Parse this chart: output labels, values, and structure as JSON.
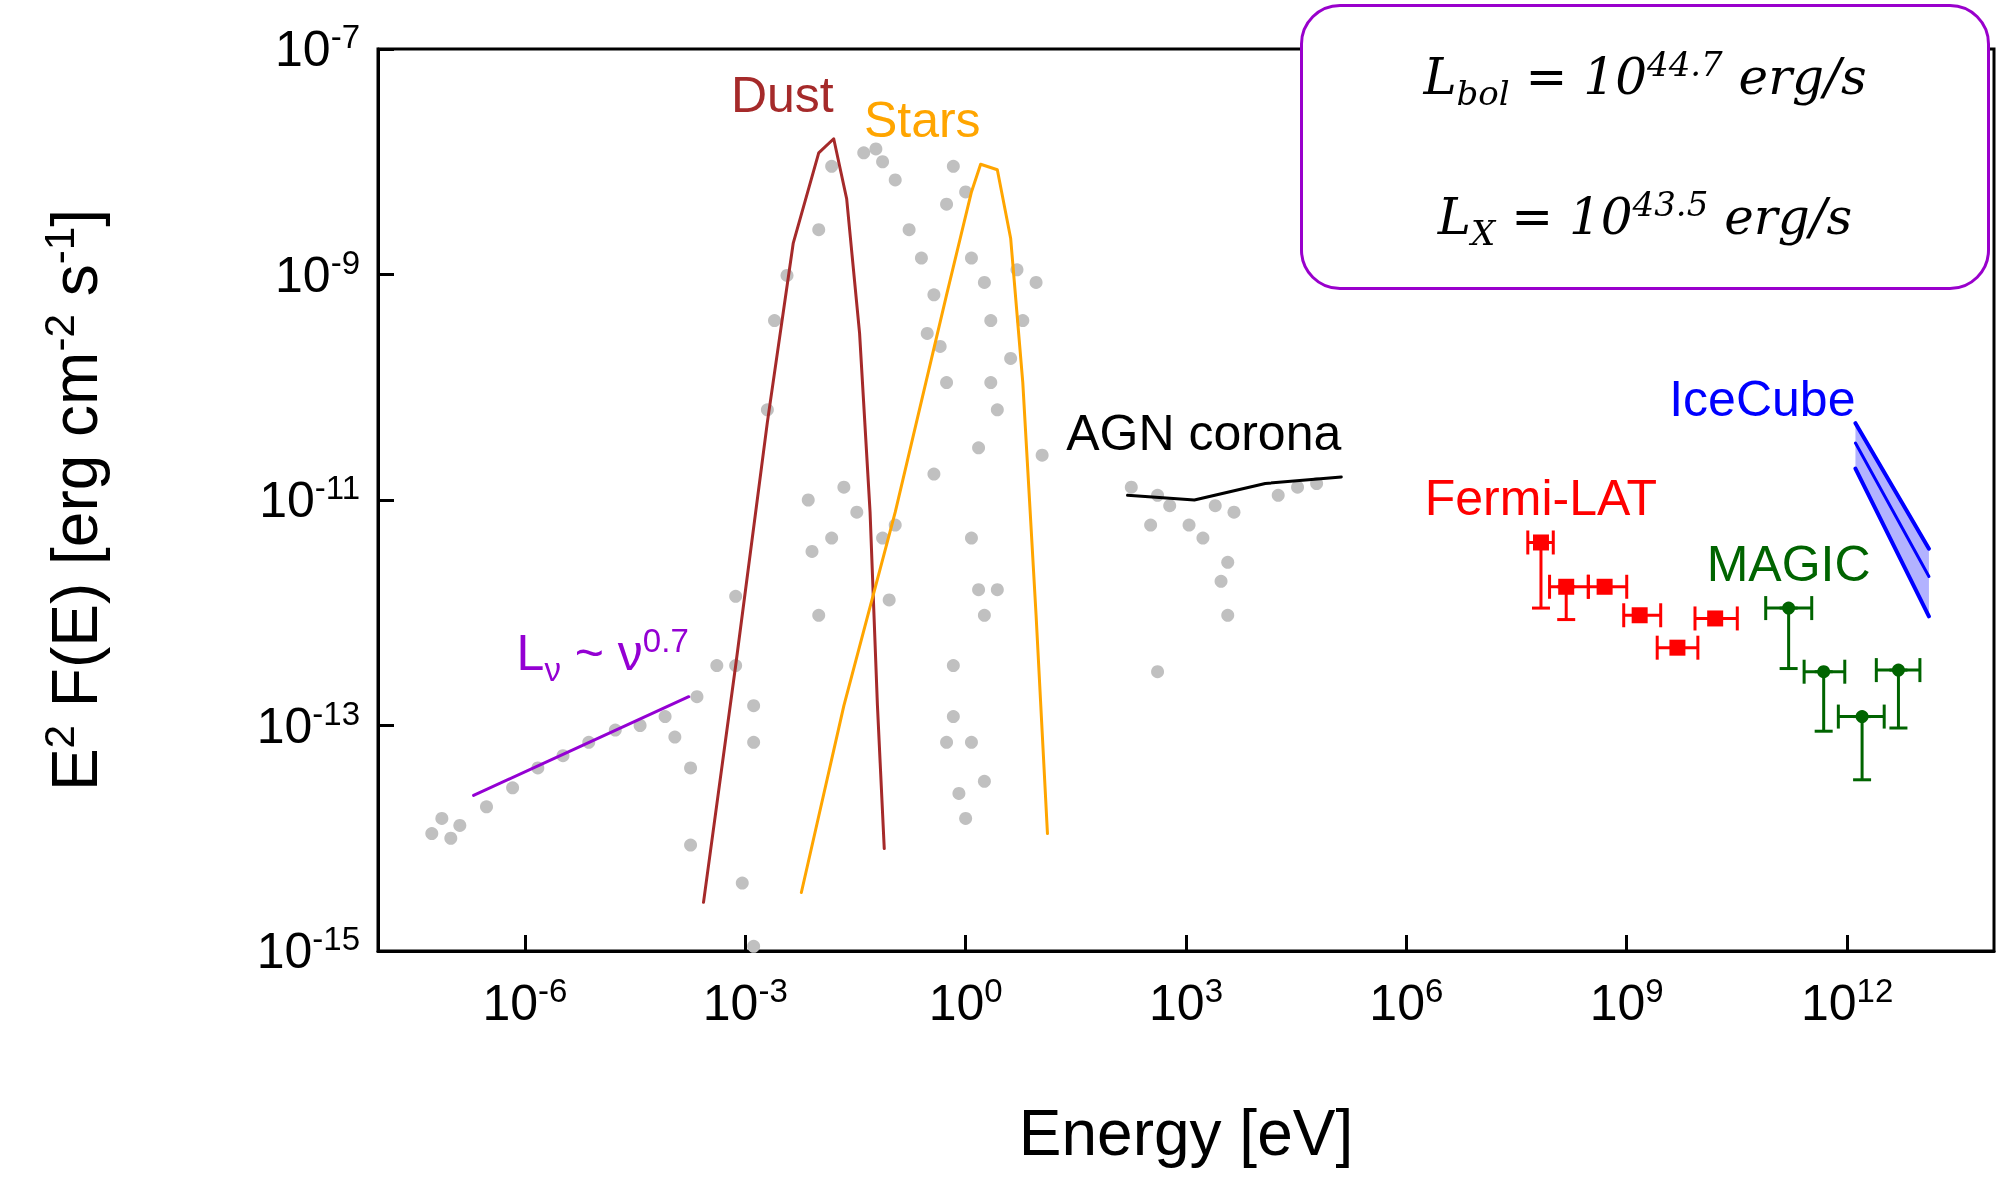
{
  "chart_data": {
    "type": "scatter",
    "xlabel": "Energy [eV]",
    "ylabel": "E$^{2}$ F(E) [erg cm$^{-2}$ s$^{-1}$]",
    "log": "xy",
    "xlim": [
      1e-08,
      100000000000000.0
    ],
    "ylim": [
      1e-15,
      1e-07
    ],
    "xticks": [
      {
        "value": 1e-06,
        "label": "10$^{-6}$"
      },
      {
        "value": 0.001,
        "label": "10$^{-3}$"
      },
      {
        "value": 1,
        "label": "10$^{0}$"
      },
      {
        "value": 1000.0,
        "label": "10$^{3}$"
      },
      {
        "value": 1000000.0,
        "label": "10$^{6}$"
      },
      {
        "value": 1000000000.0,
        "label": "10$^{9}$"
      },
      {
        "value": 1000000000000.0,
        "label": "10$^{12}$"
      }
    ],
    "yticks": [
      {
        "value": 1e-15,
        "label": "10$^{-15}$"
      },
      {
        "value": 1e-13,
        "label": "10$^{-13}$"
      },
      {
        "value": 1e-11,
        "label": "10$^{-11}$"
      },
      {
        "value": 1e-09,
        "label": "10$^{-9}$"
      },
      {
        "value": 1e-07,
        "label": "10$^{-7}$"
      }
    ],
    "annotations": [
      "L$_{bol}$ = 10$^{44.7}$ erg/s",
      "L$_{X}$ = 10$^{43.5}$ erg/s"
    ],
    "series": [
      {
        "marker": "circle",
        "color": "#c0c0c0",
        "x": [
          5.4e-08,
          7.4e-08,
          9.8e-08,
          1.3e-07,
          3e-07,
          6.8e-07,
          1.5e-06,
          3.3e-06,
          7.4e-06,
          1.7e-05,
          3.7e-05,
          8.1e-05,
          0.00011,
          0.00018,
          0.00018,
          0.00022,
          0.00041,
          0.00074,
          0.00074,
          0.0013,
          0.0013,
          0.00091,
          0.0013,
          0.002,
          0.0025,
          0.0037,
          0.0072,
          0.0081,
          0.01,
          0.015,
          0.01,
          0.015,
          0.022,
          0.033,
          0.074,
          0.11,
          0.041,
          0.074,
          0.11,
          0.17,
          0.25,
          0.37,
          0.45,
          0.55,
          0.68,
          1.0,
          1.2,
          1.8,
          2.2,
          2.7,
          4.1,
          6.0,
          9.1,
          1.5,
          1.2,
          1.5,
          1.8,
          0.68,
          0.68,
          0.55,
          1.2,
          0.81,
          1.8,
          2.7,
          11,
          0.37,
          0.091,
          1.0,
          180,
          410,
          600,
          1100,
          1700,
          2500,
          4500,
          3700,
          3000,
          410,
          3700,
          18000,
          33000,
          60000,
          330,
          0.06,
          0.55,
          0.3,
          5.0,
          2.2
        ],
        "values": [
          1.1e-14,
          1.5e-14,
          1e-14,
          1.3e-14,
          1.9e-14,
          2.8e-14,
          4.2e-14,
          5.4e-14,
          7.1e-14,
          9.1e-14,
          1e-13,
          1.2e-13,
          7.9e-14,
          4.2e-14,
          8.7e-15,
          1.8e-13,
          3.4e-13,
          3.4e-13,
          1.4e-12,
          1.5e-13,
          7.1e-14,
          4e-15,
          1.1e-15,
          6.3e-11,
          3.9e-10,
          9.8e-10,
          1e-11,
          3.5e-12,
          2.5e-09,
          9.1e-09,
          9.5e-13,
          4.6e-12,
          1.3e-11,
          7.8e-12,
          4.6e-12,
          6e-12,
          1.2e-08,
          1e-08,
          6.9e-09,
          2.5e-09,
          1.4e-09,
          6.6e-10,
          2.3e-10,
          1.1e-10,
          9.1e-09,
          5.4e-09,
          1.4e-09,
          8.5e-10,
          1.1e-10,
          6.3e-11,
          1.8e-10,
          3.9e-10,
          8.5e-10,
          2.9e-11,
          4.6e-12,
          1.6e-12,
          9.5e-13,
          3.4e-13,
          1.2e-13,
          7.1e-14,
          7.1e-14,
          2.5e-14,
          3.2e-14,
          1.6e-12,
          2.5e-11,
          1.7e-11,
          1.3e-12,
          1.5e-14,
          1.3e-11,
          1.1e-11,
          8.9e-12,
          6e-12,
          4.6e-12,
          8.9e-12,
          7.8e-12,
          2.8e-12,
          1.9e-12,
          3e-13,
          9.5e-13,
          1.1e-11,
          1.3e-11,
          1.4e-11,
          6e-12,
          1.3e-08,
          4.2e-09,
          3e-10,
          1.1e-09,
          3.9e-10
        ]
      },
      {
        "type": "line",
        "marker": "none",
        "name": "L$_{ν}$ ~ ν$^{0.7}$",
        "color": "#9400d3",
        "x": [
          2e-07,
          0.00017
        ],
        "values": [
          2.4e-14,
          1.8e-13
        ]
      },
      {
        "type": "line",
        "marker": "none",
        "name": "Dust",
        "color": "#a52a2a",
        "x": [
          0.00027,
          0.00074,
          0.002,
          0.0045,
          0.01,
          0.016,
          0.024,
          0.036,
          0.05,
          0.063,
          0.078
        ],
        "values": [
          2.7e-15,
          3.4e-13,
          4.9e-11,
          1.9e-09,
          1.2e-08,
          1.6e-08,
          4.7e-09,
          3e-10,
          7.8e-12,
          1.5e-13,
          8.1e-15
        ]
      },
      {
        "type": "line",
        "marker": "none",
        "name": "Stars",
        "color": "#ffa500",
        "x": [
          0.0058,
          0.022,
          0.11,
          0.55,
          1.2,
          1.6,
          2.7,
          4.1,
          6.0,
          9.1,
          13
        ],
        "values": [
          3.3e-15,
          1.5e-13,
          7.8e-12,
          6.6e-10,
          5.4e-09,
          9.5e-09,
          8.5e-09,
          2.1e-09,
          1.1e-10,
          9.5e-13,
          1.1e-14
        ]
      },
      {
        "type": "line",
        "marker": "none",
        "name": "AGN corona",
        "color": "#000000",
        "x": [
          160,
          1300,
          12000,
          130000.0
        ],
        "values": [
          1.1e-11,
          1e-11,
          1.4e-11,
          1.6e-11
        ]
      },
      {
        "marker": "square",
        "name": "Fermi-LAT",
        "color": "#ff0000",
        "x": [
          68000000.0,
          150000000.0,
          500000000.0,
          1500000000.0,
          4900000000.0,
          16000000000.0
        ],
        "values": [
          4.2e-12,
          1.7e-12,
          1.7e-12,
          9.5e-13,
          4.9e-13,
          8.9e-13
        ],
        "xerrors": [
          [
            45000000.0,
            100000000.0
          ],
          [
            89000000.0,
            300000000.0
          ],
          [
            300000000.0,
            1000000000.0
          ],
          [
            910000000.0,
            2900000000.0
          ],
          [
            2600000000.0,
            9300000000.0
          ],
          [
            8500000000.0,
            32000000000.0
          ]
        ],
        "errors": [
          [
            1.1e-12,
            4.2e-12
          ],
          [
            8.7e-13,
            1.7e-12
          ],
          null,
          null,
          null,
          null
        ]
      },
      {
        "marker": "circle",
        "name": "MAGIC",
        "color": "#006400",
        "x": [
          160000000000.0,
          480000000000.0,
          1600000000000.0,
          5000000000000.0
        ],
        "values": [
          1.1e-12,
          3e-13,
          1.2e-13,
          3.1e-13
        ],
        "xerrors": [
          [
            78000000000.0,
            330000000000.0
          ],
          [
            260000000000.0,
            930000000000.0
          ],
          [
            760000000000.0,
            3200000000000.0
          ],
          [
            2500000000000.0,
            9800000000000.0
          ]
        ],
        "errors": [
          [
            3.2e-13,
            1.1e-12
          ],
          [
            8.9e-14,
            3e-13
          ],
          [
            3.3e-14,
            1.2e-13
          ],
          [
            9.5e-14,
            3.1e-13
          ]
        ]
      },
      {
        "type": "line",
        "marker": "none",
        "name": "IceCube",
        "color": "#0000ff",
        "x": [
          1300000000000.0,
          13000000000000.0
        ],
        "values": [
          3.2e-11,
          2.1e-12
        ],
        "lower": [
          1.9e-11,
          9.3e-13
        ],
        "upper": [
          4.8e-11,
          3.7e-12
        ]
      }
    ]
  }
}
